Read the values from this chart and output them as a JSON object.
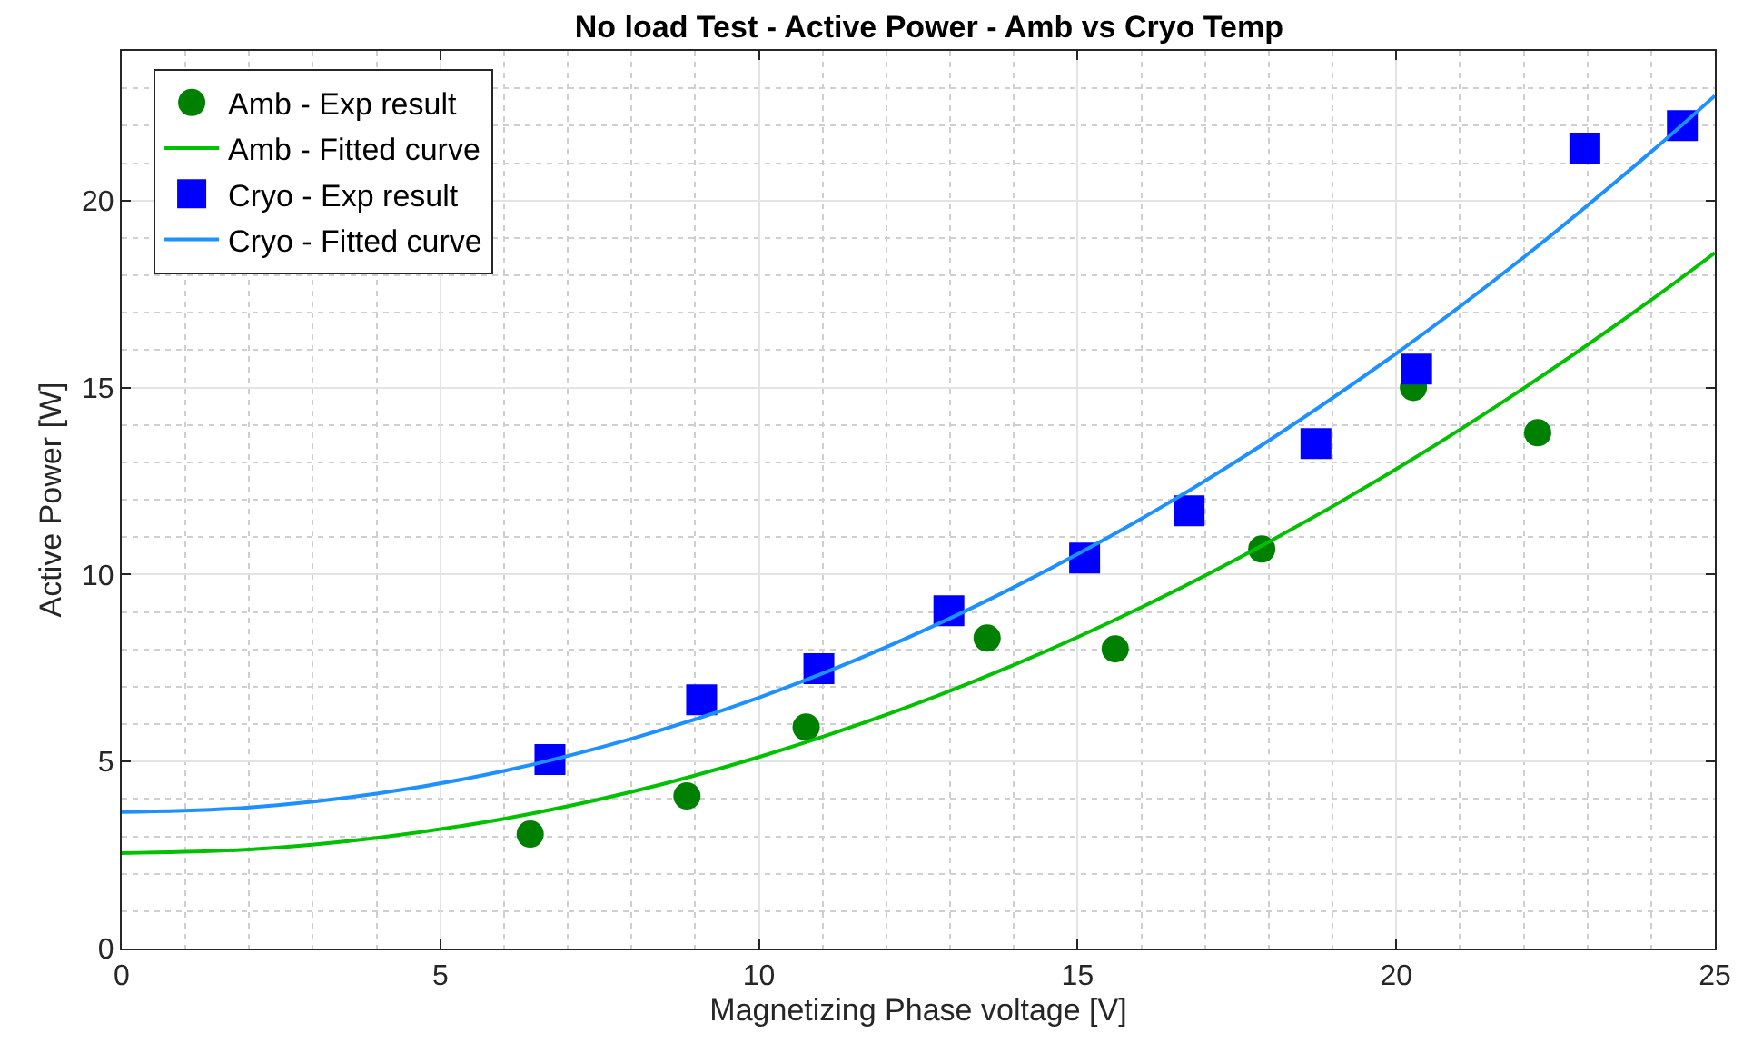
{
  "chart_data": {
    "type": "scatter",
    "title": "No load Test - Active Power - Amb vs Cryo Temp",
    "xlabel": "Magnetizing Phase voltage [V]",
    "ylabel": "Active Power [W]",
    "xlim": [
      0,
      25
    ],
    "xticks": [
      0,
      5,
      10,
      15,
      20,
      25
    ],
    "ylim": [
      0,
      24
    ],
    "yticks": [
      0,
      5,
      10,
      15,
      20
    ],
    "grid": true,
    "legend": "top left",
    "series": [
      {
        "name": "Amb - Exp result",
        "marker": "circle",
        "color": "#008000",
        "x": [
          6.41,
          8.87,
          10.74,
          13.58,
          15.59,
          17.89,
          20.27,
          22.22
        ],
        "values": [
          3.06,
          4.08,
          5.92,
          8.3,
          8.01,
          10.68,
          15.0,
          13.79
        ]
      },
      {
        "name": "Amb - Fitted curve",
        "type": "line",
        "marker": "none",
        "line_style": "solid",
        "color": "#00c000",
        "x": [
          0,
          2,
          4,
          6,
          8,
          10,
          12,
          14,
          16,
          18,
          20,
          22,
          24,
          25
        ],
        "values": [
          2.55,
          2.65,
          2.96,
          3.47,
          4.19,
          5.12,
          6.25,
          7.58,
          9.12,
          10.87,
          12.82,
          14.98,
          17.34,
          18.6
        ]
      },
      {
        "name": "Cryo - Exp result",
        "marker": "square",
        "color": "#0000ff",
        "x": [
          6.72,
          9.1,
          10.94,
          12.98,
          15.11,
          16.75,
          18.74,
          20.32,
          22.96,
          24.49
        ],
        "values": [
          5.05,
          6.65,
          7.48,
          9.03,
          10.44,
          11.7,
          13.5,
          15.49,
          21.4,
          22.0
        ]
      },
      {
        "name": "Cryo - Fitted curve",
        "type": "line",
        "marker": "none",
        "line_style": "solid",
        "color": "#1e90ff",
        "x": [
          0,
          2,
          4,
          6,
          8,
          10,
          12,
          14,
          16,
          18,
          20,
          22,
          24,
          25
        ],
        "values": [
          3.65,
          3.77,
          4.14,
          4.75,
          5.61,
          6.71,
          8.06,
          9.66,
          11.49,
          13.58,
          15.91,
          18.48,
          21.3,
          22.8
        ]
      }
    ]
  }
}
